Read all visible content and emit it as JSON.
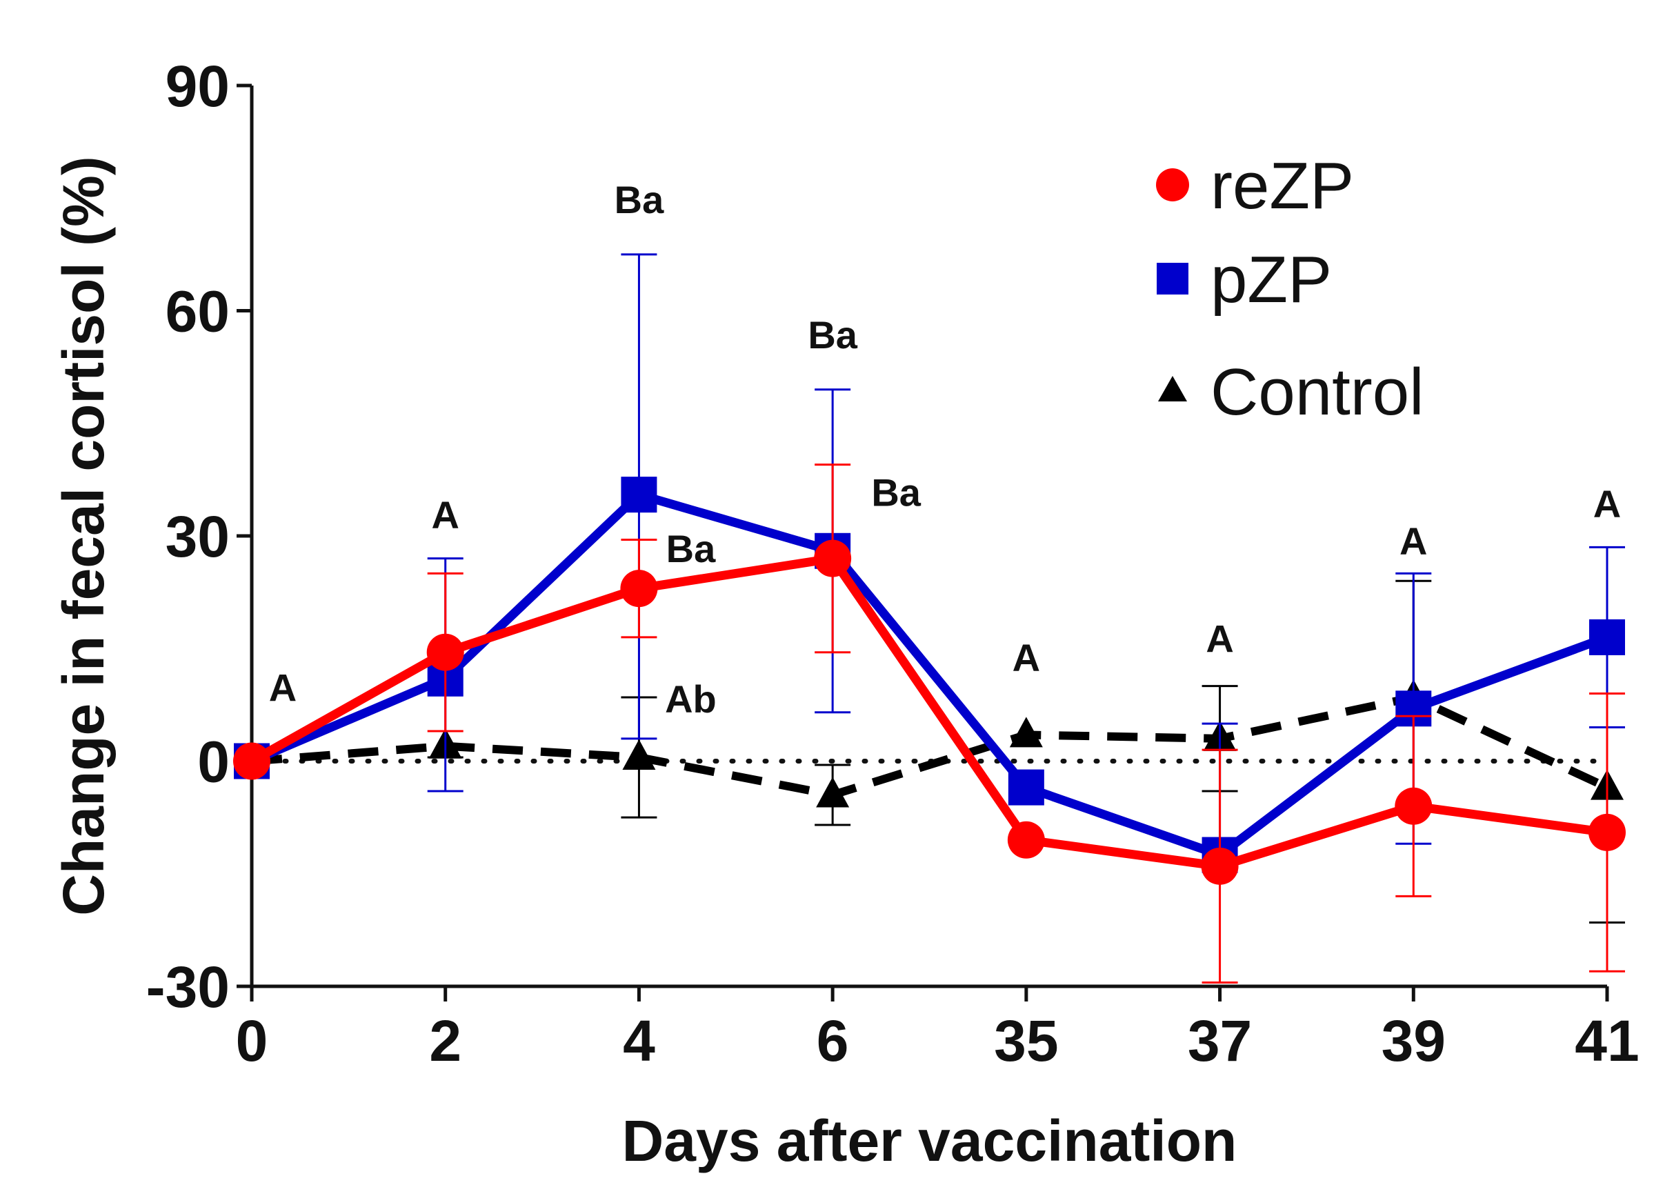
{
  "chart_data": {
    "type": "line",
    "xlabel": "Days after vaccination",
    "ylabel": "Change in fecal cortisol (%)",
    "categories": [
      "0",
      "2",
      "4",
      "6",
      "35",
      "37",
      "39",
      "41"
    ],
    "ylim": [
      -30,
      90
    ],
    "yticks": [
      "90",
      "60",
      "30",
      "0",
      "-30"
    ],
    "reference_line": 0,
    "series": [
      {
        "name": "Control",
        "color": "#000000",
        "marker": "triangle",
        "values": [
          0,
          2,
          0.5,
          -4.5,
          3.5,
          3,
          8.5,
          -3.5
        ],
        "err_low": [
          0,
          1.5,
          8,
          4,
          0,
          7,
          0,
          18
        ],
        "err_high": [
          0,
          0,
          8,
          4,
          0,
          7,
          15.5,
          0
        ]
      },
      {
        "name": "pZP",
        "color": "#0000cc",
        "marker": "square",
        "values": [
          0,
          11,
          35.5,
          28,
          -3.5,
          -12.5,
          7,
          16.5
        ],
        "err_low": [
          0,
          15,
          32.5,
          21.5,
          0,
          0,
          18,
          12
        ],
        "err_high": [
          0,
          16,
          32,
          21.5,
          0,
          17.5,
          18,
          12
        ]
      },
      {
        "name": "reZP",
        "color": "#ff0000",
        "marker": "circle",
        "values": [
          0,
          14.5,
          23,
          27,
          -10.5,
          -14,
          -6,
          -9.5
        ],
        "err_low": [
          0,
          10.5,
          6.5,
          12.5,
          0,
          15.5,
          12,
          18.5
        ],
        "err_high": [
          0,
          10.5,
          6.5,
          12.5,
          0,
          15.5,
          12,
          18.5
        ]
      }
    ],
    "annotations": [
      {
        "text": "A",
        "x": 0,
        "y": 8
      },
      {
        "text": "A",
        "x": 2,
        "y": 31
      },
      {
        "text": "Ba",
        "x": 4,
        "y": 73
      },
      {
        "text": "Ba",
        "x": 4,
        "y": 26.5
      },
      {
        "text": "Ab",
        "x": 4,
        "y": 6.5
      },
      {
        "text": "Ba",
        "x": 6,
        "y": 55
      },
      {
        "text": "Ba",
        "x": 6,
        "y": 34
      },
      {
        "text": "A",
        "x": 35,
        "y": 12
      },
      {
        "text": "A",
        "x": 37,
        "y": 14.5
      },
      {
        "text": "A",
        "x": 39,
        "y": 27.5
      },
      {
        "text": "A",
        "x": 41,
        "y": 32.5
      }
    ],
    "legend": [
      "reZP",
      "pZP",
      "Control"
    ],
    "legend_position": "top-right"
  }
}
